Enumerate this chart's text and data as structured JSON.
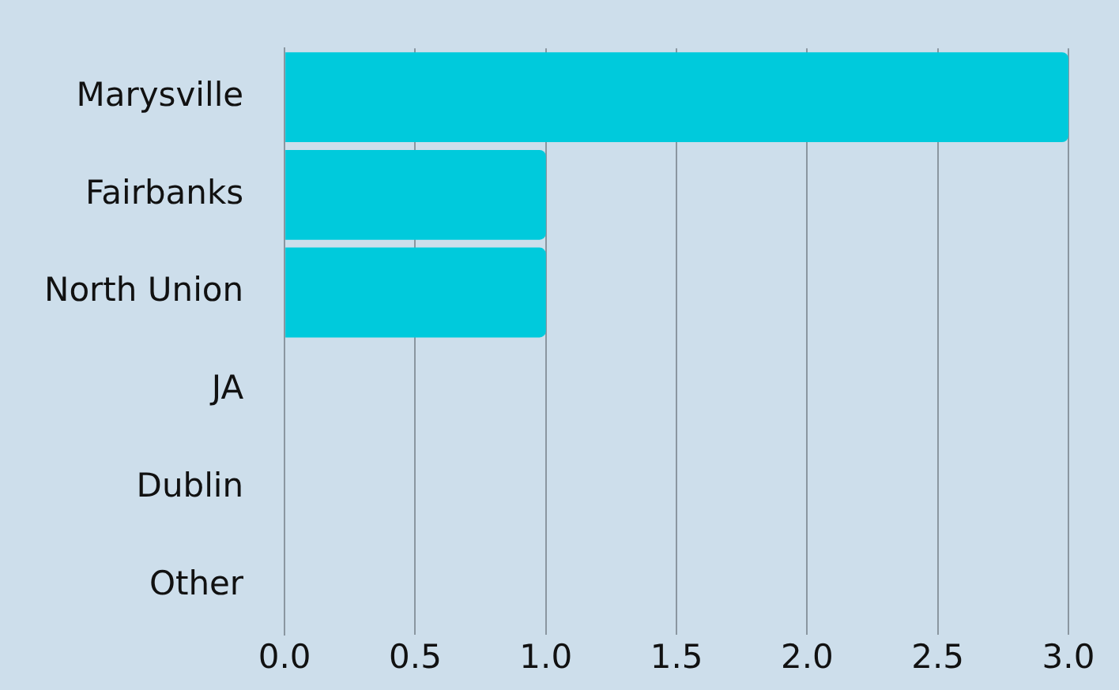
{
  "chart_data": {
    "type": "bar",
    "orientation": "horizontal",
    "categories": [
      "Marysville",
      "Fairbanks",
      "North Union",
      "JA",
      "Dublin",
      "Other"
    ],
    "values": [
      3,
      1,
      1,
      0,
      0,
      0
    ],
    "color": "#00cadc",
    "xlim": [
      0,
      3
    ],
    "xticks": [
      {
        "value": 0,
        "label": "0.0"
      },
      0.5,
      {
        "value": 1,
        "label": "1.0"
      },
      1.5,
      {
        "value": 2,
        "label": "2.0"
      },
      2.5,
      {
        "value": 3,
        "label": "3.0"
      }
    ],
    "grid": "x",
    "legend": false
  }
}
